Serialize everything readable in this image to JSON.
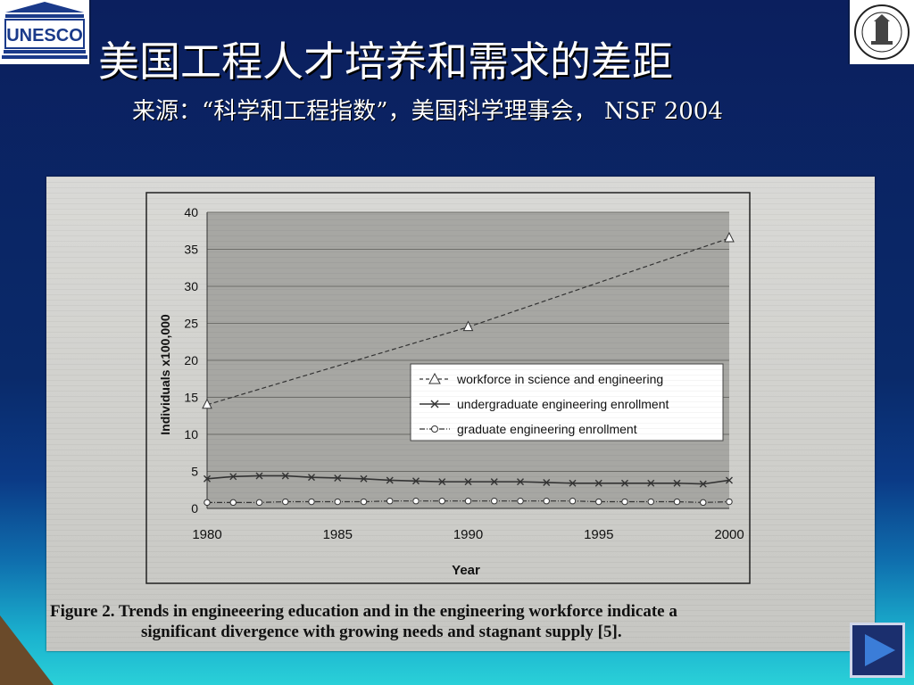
{
  "slide": {
    "title": "美国工程人才培养和需求的差距",
    "subtitle": "来源：“科学和工程指数”，美国科学理事会， NSF 2004"
  },
  "logos": {
    "left": {
      "text": "UNESCO",
      "icon": "unesco-temple-icon"
    },
    "right": {
      "icon": "xjtu-seal-icon"
    }
  },
  "figure": {
    "caption_line1": "Figure 2. Trends in engineeering education and in the engineering workforce indicate a",
    "caption_line2": "significant divergence with growing needs and stagnant supply [5]."
  },
  "chart_data": {
    "type": "line",
    "title": "",
    "xlabel": "Year",
    "ylabel": "Individuals x100,000",
    "xlim": [
      1980,
      2000
    ],
    "ylim": [
      0,
      40
    ],
    "xticks": [
      1980,
      1985,
      1990,
      1995,
      2000
    ],
    "yticks": [
      0,
      5,
      10,
      15,
      20,
      25,
      30,
      35,
      40
    ],
    "grid": true,
    "legend_position": "center-right",
    "series": [
      {
        "name": "workforce in science and engineering",
        "style": "dashed",
        "marker": "triangle",
        "x": [
          1980,
          1990,
          2000
        ],
        "values": [
          14,
          24.5,
          36.5
        ]
      },
      {
        "name": "undergraduate engineering enrollment",
        "style": "solid",
        "marker": "x",
        "x": [
          1980,
          1981,
          1982,
          1983,
          1984,
          1985,
          1986,
          1987,
          1988,
          1989,
          1990,
          1991,
          1992,
          1993,
          1994,
          1995,
          1996,
          1997,
          1998,
          1999,
          2000
        ],
        "values": [
          4.0,
          4.3,
          4.4,
          4.4,
          4.2,
          4.1,
          4.0,
          3.8,
          3.7,
          3.6,
          3.6,
          3.6,
          3.6,
          3.5,
          3.4,
          3.4,
          3.4,
          3.4,
          3.4,
          3.3,
          3.8
        ]
      },
      {
        "name": "graduate engineering enrollment",
        "style": "dash-dot",
        "marker": "circle",
        "x": [
          1980,
          1981,
          1982,
          1983,
          1984,
          1985,
          1986,
          1987,
          1988,
          1989,
          1990,
          1991,
          1992,
          1993,
          1994,
          1995,
          1996,
          1997,
          1998,
          1999,
          2000
        ],
        "values": [
          0.8,
          0.8,
          0.8,
          0.9,
          0.9,
          0.9,
          0.9,
          1.0,
          1.0,
          1.0,
          1.0,
          1.0,
          1.0,
          1.0,
          1.0,
          0.9,
          0.9,
          0.9,
          0.9,
          0.8,
          0.9
        ]
      }
    ],
    "colors": {
      "plot_bg": "#a7a7a3",
      "gridline": "#6e6e6a",
      "series_line": "#333333"
    }
  },
  "nav": {
    "next_icon": "play-next-icon"
  }
}
